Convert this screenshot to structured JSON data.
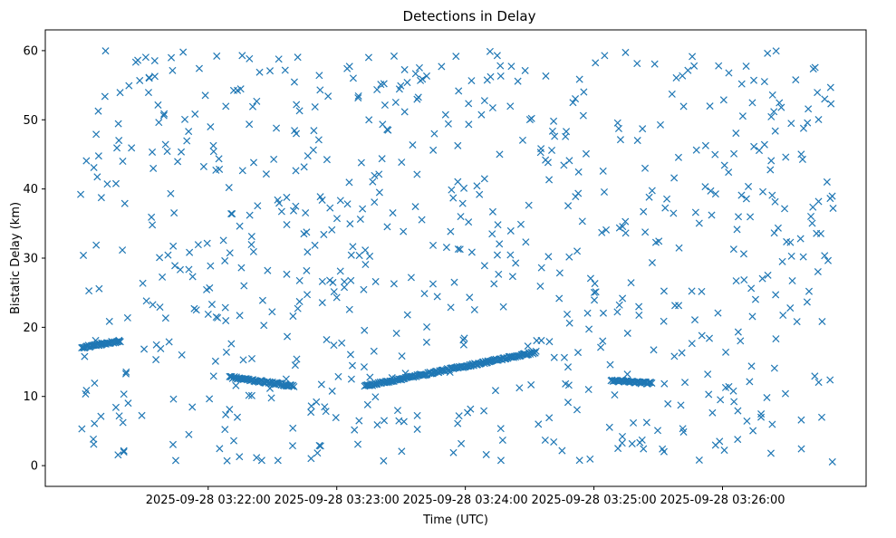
{
  "chart_data": {
    "type": "scatter",
    "title": "Detections in Delay",
    "xlabel": "Time (UTC)",
    "ylabel": "Bistatic Delay (km)",
    "marker": "x",
    "color": "#1f77b4",
    "x_axis_type": "time",
    "xlim": [
      "2025-09-28T03:20:44",
      "2025-09-28T03:27:07"
    ],
    "ylim": [
      -3,
      63
    ],
    "x_ticks": [
      {
        "value": "2025-09-28T03:22:00",
        "label": "2025-09-28 03:22:00"
      },
      {
        "value": "2025-09-28T03:23:00",
        "label": "2025-09-28 03:23:00"
      },
      {
        "value": "2025-09-28T03:24:00",
        "label": "2025-09-28 03:24:00"
      },
      {
        "value": "2025-09-28T03:25:00",
        "label": "2025-09-28 03:25:00"
      },
      {
        "value": "2025-09-28T03:26:00",
        "label": "2025-09-28 03:26:00"
      }
    ],
    "y_ticks": [
      0,
      10,
      20,
      30,
      40,
      50,
      60
    ],
    "grid": false,
    "tracks": [
      {
        "x_start": "2025-09-28T03:21:01",
        "x_end": "2025-09-28T03:21:19",
        "y_start": 17.1,
        "y_end": 18.0
      },
      {
        "x_start": "2025-09-28T03:22:10",
        "x_end": "2025-09-28T03:22:40",
        "y_start": 12.8,
        "y_end": 11.5
      },
      {
        "x_start": "2025-09-28T03:23:13",
        "x_end": "2025-09-28T03:24:33",
        "y_start": 11.5,
        "y_end": 16.4
      },
      {
        "x_start": "2025-09-28T03:25:08",
        "x_end": "2025-09-28T03:25:27",
        "y_start": 12.3,
        "y_end": 11.9
      }
    ],
    "clutter": {
      "x_range": [
        "2025-09-28T03:21:00",
        "2025-09-28T03:26:52"
      ],
      "y_range": [
        0.5,
        60
      ],
      "count": 720
    }
  }
}
